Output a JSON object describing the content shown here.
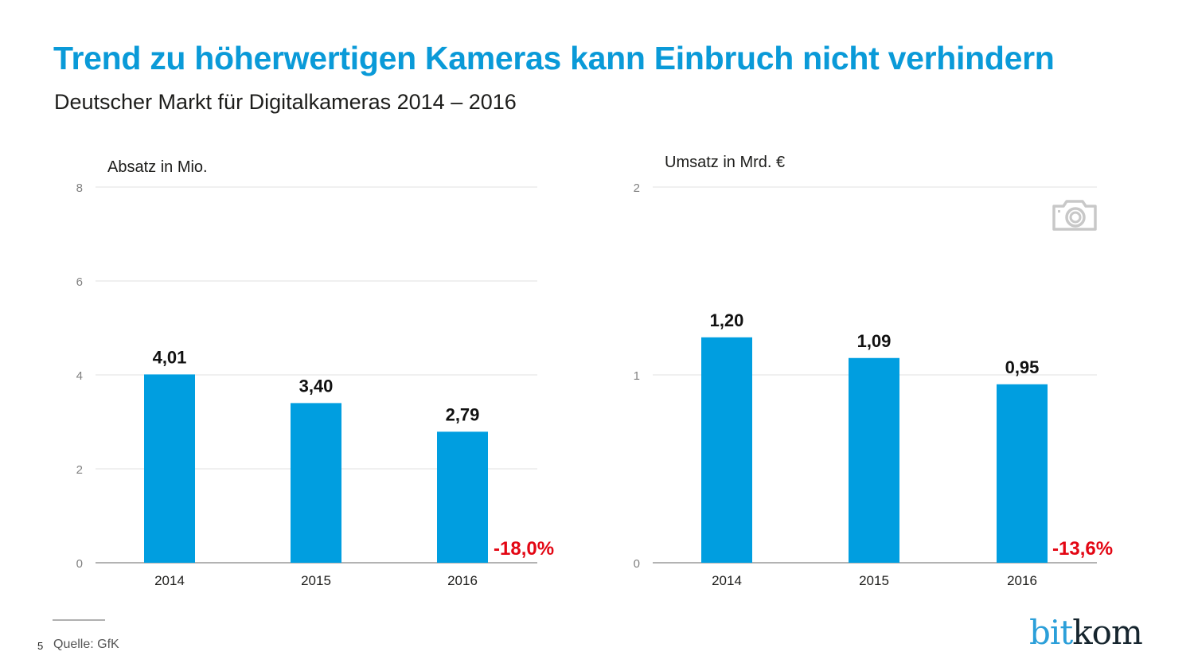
{
  "header": {
    "title": "Trend zu höherwertigen Kameras kann Einbruch nicht verhindern",
    "subtitle": "Deutscher Markt für Digitalkameras 2014 – 2016"
  },
  "colors": {
    "title": "#0a9ad8",
    "bar": "#009ee0",
    "change": "#e30613",
    "gridline": "#e0e0e0",
    "axis": "#9a9a9a",
    "tick_label": "#808080",
    "camera_icon": "#c8c8c8"
  },
  "chart_data": [
    {
      "type": "bar",
      "title": "Absatz in Mio.",
      "categories": [
        "2014",
        "2015",
        "2016"
      ],
      "values": [
        4.01,
        3.4,
        2.79
      ],
      "value_labels": [
        "4,01",
        "3,40",
        "2,79"
      ],
      "ylim": [
        0,
        8
      ],
      "yticks": [
        0,
        2,
        4,
        6,
        8
      ],
      "ytick_labels": [
        "0",
        "2",
        "4",
        "6",
        "8"
      ],
      "grid": true,
      "annotation": "-18,0%",
      "xlabel": "",
      "ylabel": ""
    },
    {
      "type": "bar",
      "title": "Umsatz in Mrd. €",
      "categories": [
        "2014",
        "2015",
        "2016"
      ],
      "values": [
        1.2,
        1.09,
        0.95
      ],
      "value_labels": [
        "1,20",
        "1,09",
        "0,95"
      ],
      "ylim": [
        0,
        2
      ],
      "yticks": [
        0,
        1,
        2
      ],
      "ytick_labels": [
        "0",
        "1",
        "2"
      ],
      "grid": true,
      "annotation": "-13,6%",
      "xlabel": "",
      "ylabel": ""
    }
  ],
  "footer": {
    "page_number": "5",
    "source": "Quelle: GfK",
    "logo_part1": "bit",
    "logo_part2": "kom"
  },
  "icons": {
    "decoration": "camera-icon"
  }
}
